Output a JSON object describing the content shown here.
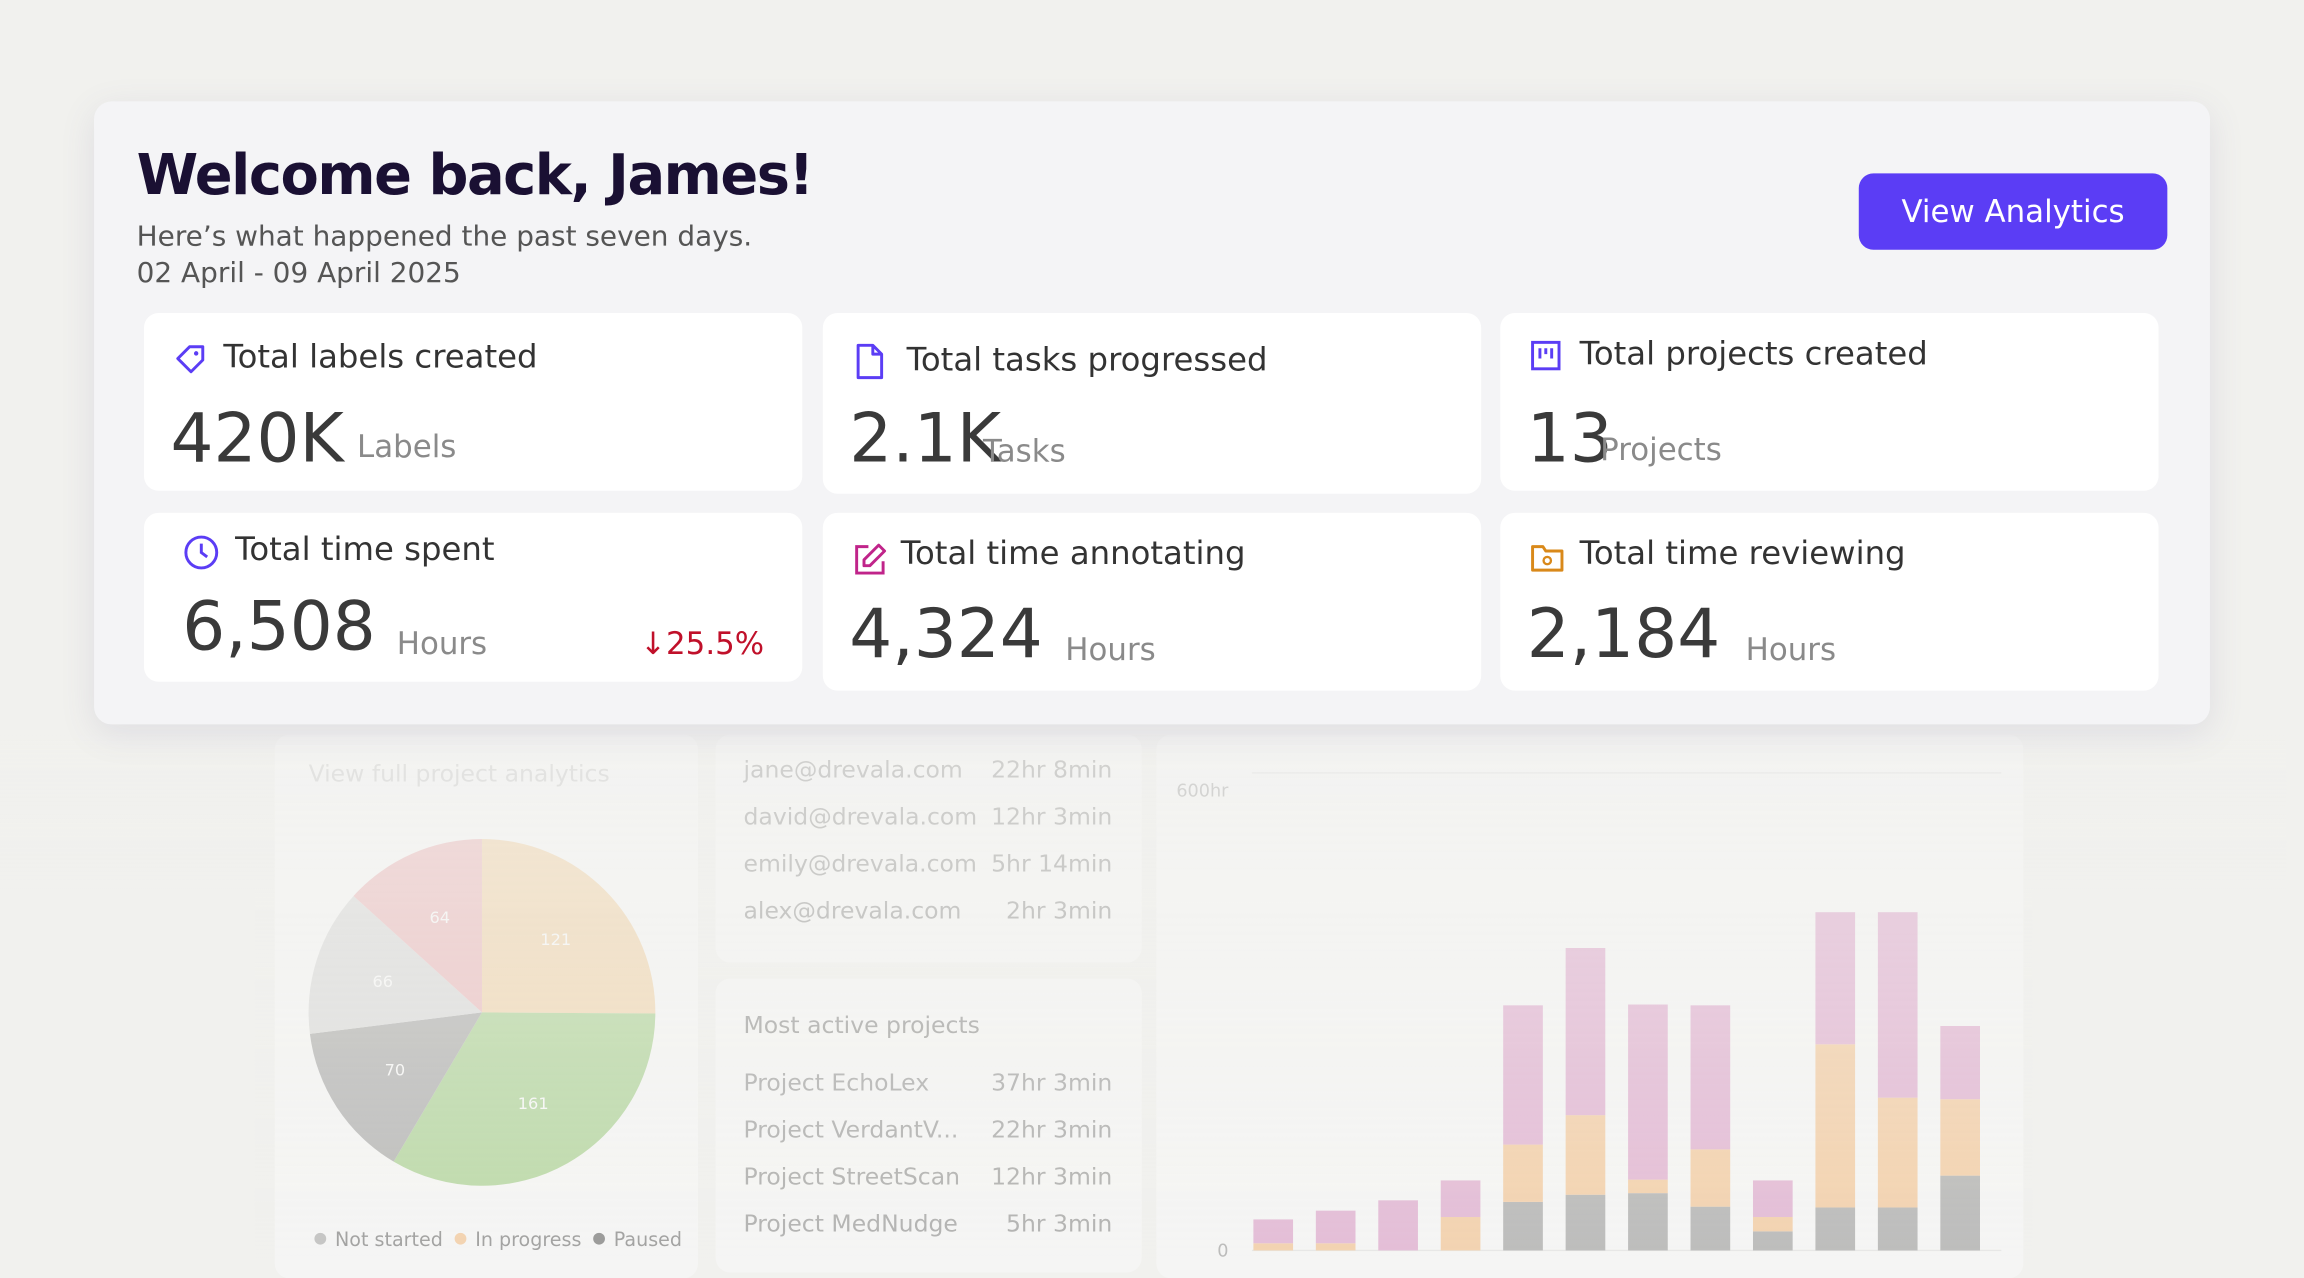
{
  "header": {
    "title": "Welcome back, James!",
    "subtitle": "Here’s what happened the past seven days.",
    "date_range": "02 April - 09 April 2025",
    "button": "View Analytics"
  },
  "stats": [
    {
      "label": "Total labels created",
      "value": "420K",
      "unit": "Labels"
    },
    {
      "label": "Total tasks progressed",
      "value": "2.1K",
      "unit": "Tasks"
    },
    {
      "label": "Total projects created",
      "value": "13",
      "unit": "Projects"
    },
    {
      "label": "Total time spent",
      "value": "6,508",
      "unit": "Hours",
      "change": "↓25.5%"
    },
    {
      "label": "Total time annotating",
      "value": "4,324",
      "unit": "Hours"
    },
    {
      "label": "Total time reviewing",
      "value": "2,184",
      "unit": "Hours"
    }
  ],
  "background": {
    "link": "View full project analytics",
    "team_times": [
      {
        "email": "jane@drevala.com",
        "time": "22hr 8min"
      },
      {
        "email": "david@drevala.com",
        "time": "12hr 3min"
      },
      {
        "email": "emily@drevala.com",
        "time": "5hr 14min"
      },
      {
        "email": "alex@drevala.com",
        "time": "2hr 3min"
      }
    ],
    "projects_title": "Most active projects",
    "projects": [
      {
        "name": "Project EchoLex",
        "time": "37hr 3min"
      },
      {
        "name": "Project VerdantV...",
        "time": "22hr 3min"
      },
      {
        "name": "Project StreetScan",
        "time": "12hr 3min"
      },
      {
        "name": "Project MedNudge",
        "time": "5hr 3min"
      }
    ]
  },
  "chart_data": [
    {
      "type": "pie",
      "values": [
        121,
        161,
        70,
        66,
        64
      ],
      "colors": [
        "#f2c88e",
        "#8cc46a",
        "#8c8c8c",
        "#cfcfcf",
        "#e9a1a6"
      ],
      "legend": [
        {
          "name": "Not started",
          "color": "#9a9a9a"
        },
        {
          "name": "In progress",
          "color": "#f5b574"
        },
        {
          "name": "Paused",
          "color": "#444444"
        }
      ]
    },
    {
      "type": "bar",
      "stacked": true,
      "ylim": [
        0,
        600
      ],
      "yticks": [
        {
          "value": 0,
          "label": "0"
        },
        {
          "value": 600,
          "label": "600hr"
        }
      ],
      "series": [
        {
          "color": "#8a8a8a",
          "values": [
            0,
            0,
            0,
            0,
            61,
            70,
            72,
            55,
            24,
            54,
            54,
            94
          ]
        },
        {
          "color": "#f5b574",
          "values": [
            9,
            9,
            0,
            42,
            72,
            100,
            17,
            72,
            18,
            205,
            138,
            96
          ]
        },
        {
          "color": "#d88cc0",
          "values": [
            30,
            41,
            63,
            46,
            175,
            210,
            220,
            181,
            46,
            166,
            233,
            92
          ]
        }
      ]
    }
  ]
}
